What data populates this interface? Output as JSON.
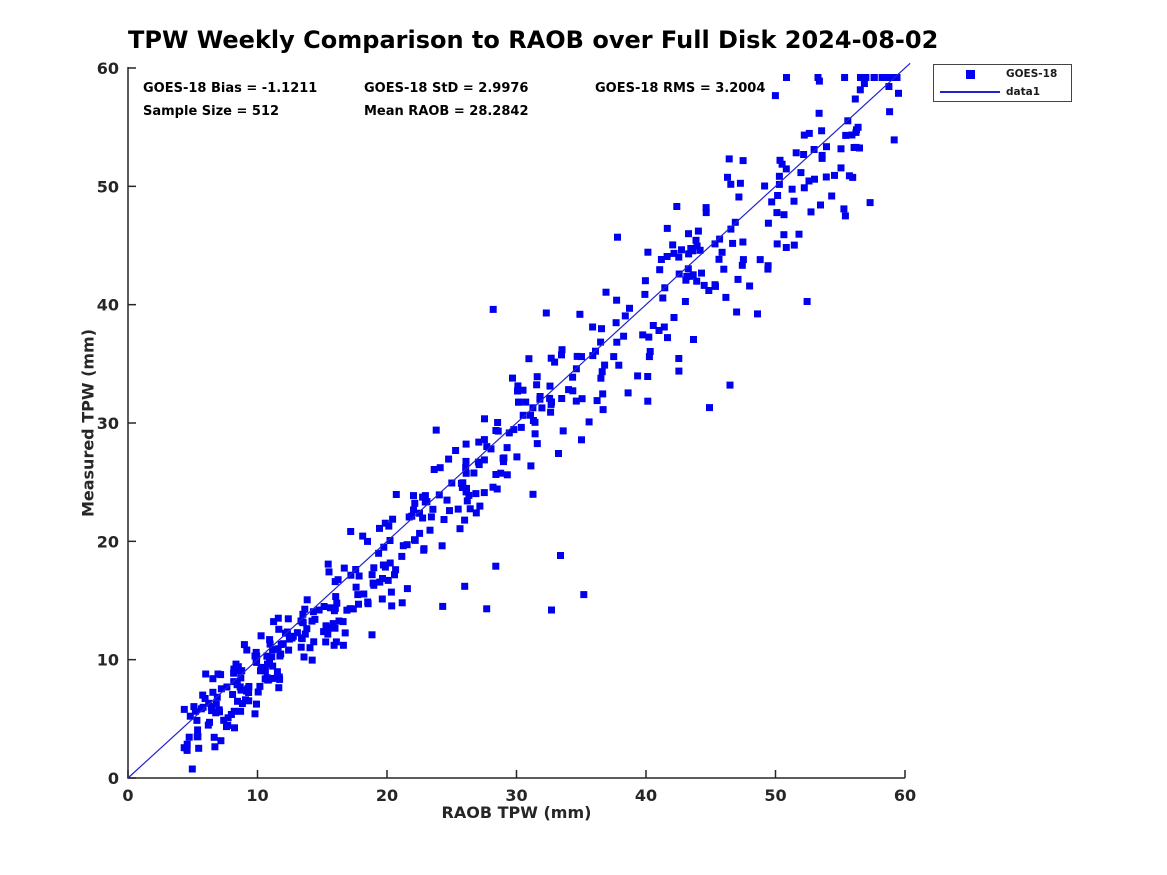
{
  "header": {
    "title": "TPW Weekly Comparison to RAOB over Full Disk 2024-08-02"
  },
  "stats": {
    "bias": "GOES-18 Bias = -1.1211",
    "std": "GOES-18 StD = 2.9976",
    "rms": "GOES-18 RMS = 3.2004",
    "sample": "Sample Size = 512",
    "mean": "Mean RAOB = 28.2842"
  },
  "legend": {
    "entries": [
      {
        "icon": "blue-square-marker",
        "label": "GOES-18"
      },
      {
        "icon": "blue-line",
        "label": "data1"
      }
    ]
  },
  "chart_data": {
    "type": "scatter",
    "title": "TPW Weekly Comparison to RAOB over Full Disk 2024-08-02",
    "xlabel": "RAOB TPW (mm)",
    "ylabel": "Measured TPW (mm)",
    "xlim": [
      0,
      60
    ],
    "ylim": [
      0,
      60
    ],
    "x_ticks": [
      0,
      10,
      20,
      30,
      40,
      50,
      60
    ],
    "y_ticks": [
      0,
      10,
      20,
      30,
      40,
      50,
      60
    ],
    "grid": false,
    "legend_position": "top-right-outside",
    "axis_color": "#262626",
    "series": [
      {
        "name": "GOES-18",
        "type": "scatter",
        "marker": "square",
        "marker_size_px": 7,
        "color": "#0000ee",
        "sample_size": 512,
        "bias": -1.1211,
        "std": 2.9976,
        "rms": 3.2004,
        "mean_raob": 28.2842,
        "x_range": [
          4.3,
          59.7
        ],
        "relationship": "y = x + bias + noise",
        "seed": 13,
        "noise_sd_base": 1.25,
        "noise_sd_slope": 0.045,
        "outliers": [
          [
            24.3,
            14.5
          ],
          [
            27.7,
            14.3
          ],
          [
            32.7,
            14.2
          ],
          [
            35.2,
            15.5
          ],
          [
            26.0,
            16.2
          ],
          [
            28.4,
            17.9
          ],
          [
            33.4,
            18.8
          ],
          [
            28.2,
            39.6
          ],
          [
            32.3,
            39.3
          ],
          [
            44.9,
            31.3
          ],
          [
            37.8,
            45.7
          ],
          [
            55.4,
            47.5
          ],
          [
            23.8,
            29.4
          ]
        ]
      },
      {
        "name": "data1",
        "type": "line",
        "color": "#2222cc",
        "from": [
          0,
          0
        ],
        "to": [
          60.4,
          60.4
        ]
      }
    ]
  }
}
